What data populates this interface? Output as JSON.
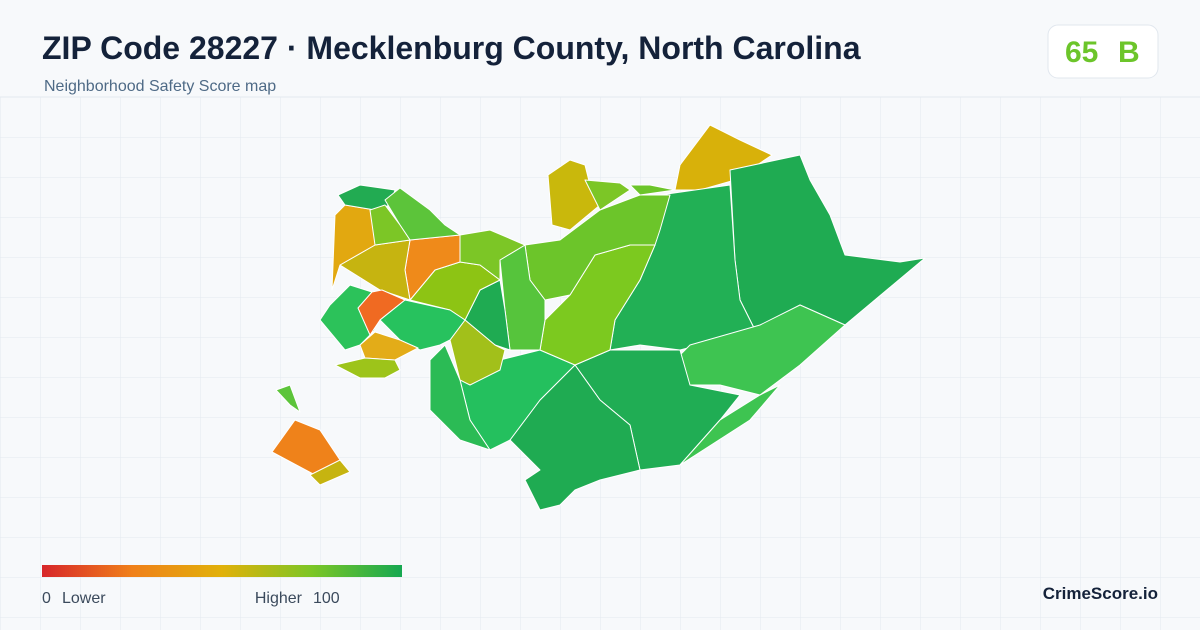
{
  "header": {
    "title": "ZIP Code 28227 · Mecklenburg County, North Carolina",
    "subtitle": "Neighborhood Safety Score map"
  },
  "score": {
    "value": 65,
    "grade": "B"
  },
  "legend": {
    "min": 0,
    "min_label": "Lower",
    "max_label": "Higher",
    "max": 100
  },
  "brand": "CrimeScore.io"
}
